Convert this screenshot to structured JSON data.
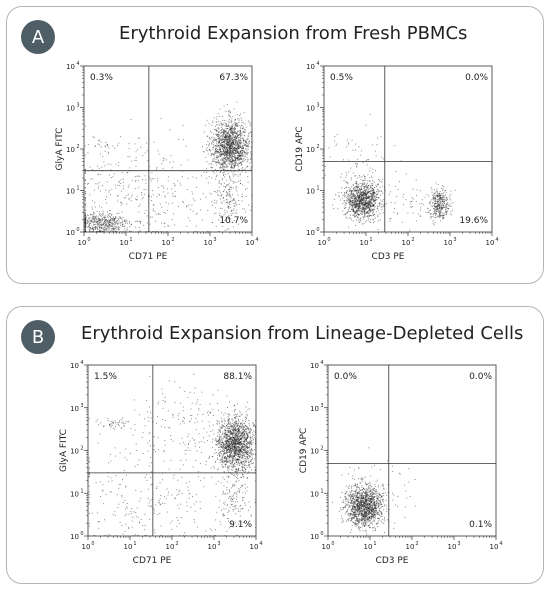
{
  "panels": [
    {
      "badge": "A",
      "title": "Erythroid Expansion from Fresh PBMCs",
      "plots": [
        {
          "name": "glya-vs-cd71-fresh",
          "xlabel": "CD71 PE",
          "ylabel": "GlyA FITC",
          "gate": [
            35,
            30
          ],
          "q": [
            "0.3%",
            "67.3%",
            "",
            "10.7%"
          ]
        },
        {
          "name": "cd19-vs-cd3-fresh",
          "xlabel": "CD3 PE",
          "ylabel": "CD19 APC",
          "gate": [
            28,
            50
          ],
          "q": [
            "0.5%",
            "0.0%",
            "",
            "19.6%"
          ]
        }
      ]
    },
    {
      "badge": "B",
      "title": "Erythroid Expansion from Lineage-Depleted Cells",
      "plots": [
        {
          "name": "glya-vs-cd71-lindep",
          "xlabel": "CD71 PE",
          "ylabel": "GlyA FITC",
          "gate": [
            35,
            30
          ],
          "q": [
            "1.5%",
            "88.1%",
            "",
            "9.1%"
          ]
        },
        {
          "name": "cd19-vs-cd3-lindep",
          "xlabel": "CD3 PE",
          "ylabel": "CD19 APC",
          "gate": [
            28,
            50
          ],
          "q": [
            "0.0%",
            "0.0%",
            "",
            "0.1%"
          ]
        }
      ]
    }
  ],
  "chart_data": [
    {
      "type": "scatter",
      "xlabel": "CD71 PE",
      "ylabel": "GlyA FITC",
      "xscale": "log",
      "yscale": "log",
      "xlim": [
        1,
        10000
      ],
      "ylim": [
        1,
        10000
      ],
      "quadrant_gate": {
        "x": 35,
        "y": 30
      },
      "quadrants": {
        "upper_left": "0.3%",
        "upper_right": "67.3%",
        "lower_right": "10.7%"
      },
      "clusters": [
        {
          "center": [
            3000,
            120
          ],
          "spread_log": [
            0.23,
            0.32
          ],
          "points": 1400
        },
        {
          "center": [
            2600,
            6
          ],
          "spread_log": [
            0.2,
            0.3
          ],
          "points": 160
        },
        {
          "center": [
            2.5,
            1.6
          ],
          "spread_log": [
            0.35,
            0.14
          ],
          "points": 460
        },
        {
          "center": [
            18,
            8
          ],
          "spread_log": [
            1.1,
            0.65
          ],
          "points": 420
        },
        {
          "center": [
            3,
            130
          ],
          "spread_log": [
            0.25,
            0.06
          ],
          "points": 20
        }
      ]
    },
    {
      "type": "scatter",
      "xlabel": "CD3 PE",
      "ylabel": "CD19 APC",
      "xscale": "log",
      "yscale": "log",
      "xlim": [
        1,
        10000
      ],
      "ylim": [
        1,
        10000
      ],
      "quadrant_gate": {
        "x": 28,
        "y": 50
      },
      "quadrants": {
        "upper_left": "0.5%",
        "upper_right": "0.0%",
        "lower_right": "19.6%"
      },
      "clusters": [
        {
          "center": [
            8,
            6
          ],
          "spread_log": [
            0.2,
            0.22
          ],
          "points": 1050
        },
        {
          "center": [
            550,
            5
          ],
          "spread_log": [
            0.12,
            0.18
          ],
          "points": 330
        },
        {
          "center": [
            8,
            45
          ],
          "spread_log": [
            0.45,
            0.4
          ],
          "points": 80
        },
        {
          "center": [
            70,
            5
          ],
          "spread_log": [
            0.55,
            0.3
          ],
          "points": 70
        }
      ]
    },
    {
      "type": "scatter",
      "xlabel": "CD71 PE",
      "ylabel": "GlyA FITC",
      "xscale": "log",
      "yscale": "log",
      "xlim": [
        1,
        10000
      ],
      "ylim": [
        1,
        10000
      ],
      "quadrant_gate": {
        "x": 35,
        "y": 30
      },
      "quadrants": {
        "upper_left": "1.5%",
        "upper_right": "88.1%",
        "lower_right": "9.1%"
      },
      "clusters": [
        {
          "center": [
            3200,
            140
          ],
          "spread_log": [
            0.22,
            0.32
          ],
          "points": 1500
        },
        {
          "center": [
            2600,
            6
          ],
          "spread_log": [
            0.2,
            0.3
          ],
          "points": 120
        },
        {
          "center": [
            4,
            430
          ],
          "spread_log": [
            0.22,
            0.06
          ],
          "points": 45
        },
        {
          "center": [
            25,
            6
          ],
          "spread_log": [
            1.0,
            0.6
          ],
          "points": 260
        },
        {
          "center": [
            200,
            400
          ],
          "spread_log": [
            0.8,
            0.5
          ],
          "points": 180
        }
      ]
    },
    {
      "type": "scatter",
      "xlabel": "CD3 PE",
      "ylabel": "CD19 APC",
      "xscale": "log",
      "yscale": "log",
      "xlim": [
        1,
        10000
      ],
      "ylim": [
        1,
        10000
      ],
      "quadrant_gate": {
        "x": 28,
        "y": 50
      },
      "quadrants": {
        "upper_left": "0.0%",
        "upper_right": "0.0%",
        "lower_right": "0.1%"
      },
      "clusters": [
        {
          "center": [
            7,
            5
          ],
          "spread_log": [
            0.22,
            0.22
          ],
          "points": 1250
        },
        {
          "center": [
            12,
            12
          ],
          "spread_log": [
            0.4,
            0.4
          ],
          "points": 100
        }
      ]
    }
  ]
}
